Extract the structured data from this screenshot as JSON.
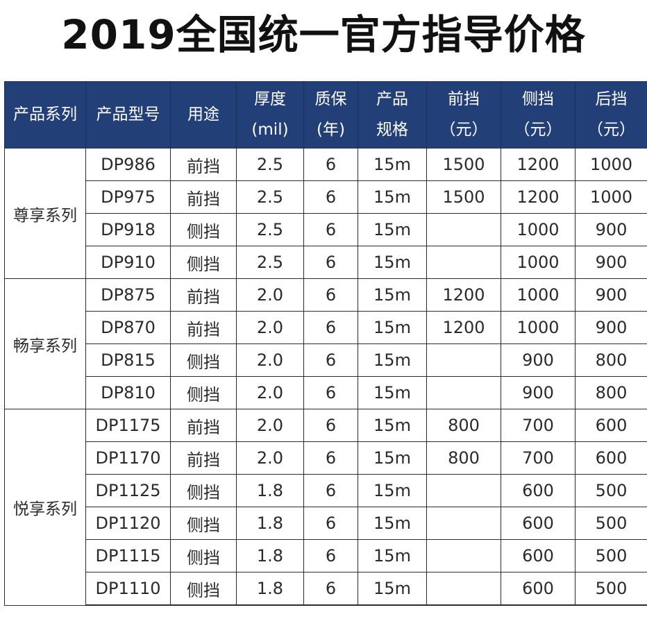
{
  "title": "2019全国统一官方指导价格",
  "headers": [
    [
      "产品系列"
    ],
    [
      "产品型号"
    ],
    [
      "用途"
    ],
    [
      "厚度",
      "(mil)"
    ],
    [
      "质保",
      "(年)"
    ],
    [
      "产品",
      "规格"
    ],
    [
      "前挡",
      "（元）"
    ],
    [
      "侧挡",
      "（元）"
    ],
    [
      "后挡",
      "（元）"
    ]
  ],
  "groups": [
    {
      "series": "尊享系列",
      "rows": [
        {
          "model": "DP986",
          "use": "前挡",
          "thickness": "2.5",
          "warranty": "6",
          "spec": "15m",
          "front": "1500",
          "side": "1200",
          "rear": "1000"
        },
        {
          "model": "DP975",
          "use": "前挡",
          "thickness": "2.5",
          "warranty": "6",
          "spec": "15m",
          "front": "1500",
          "side": "1200",
          "rear": "1000"
        },
        {
          "model": "DP918",
          "use": "侧挡",
          "thickness": "2.5",
          "warranty": "6",
          "spec": "15m",
          "front": "",
          "side": "1000",
          "rear": "900"
        },
        {
          "model": "DP910",
          "use": "侧挡",
          "thickness": "2.5",
          "warranty": "6",
          "spec": "15m",
          "front": "",
          "side": "1000",
          "rear": "900"
        }
      ]
    },
    {
      "series": "畅享系列",
      "rows": [
        {
          "model": "DP875",
          "use": "前挡",
          "thickness": "2.0",
          "warranty": "6",
          "spec": "15m",
          "front": "1200",
          "side": "1000",
          "rear": "900"
        },
        {
          "model": "DP870",
          "use": "前挡",
          "thickness": "2.0",
          "warranty": "6",
          "spec": "15m",
          "front": "1200",
          "side": "1000",
          "rear": "900"
        },
        {
          "model": "DP815",
          "use": "侧挡",
          "thickness": "2.0",
          "warranty": "6",
          "spec": "15m",
          "front": "",
          "side": "900",
          "rear": "800"
        },
        {
          "model": "DP810",
          "use": "侧挡",
          "thickness": "2.0",
          "warranty": "6",
          "spec": "15m",
          "front": "",
          "side": "900",
          "rear": "800"
        }
      ]
    },
    {
      "series": "悦享系列",
      "rows": [
        {
          "model": "DP1175",
          "use": "前挡",
          "thickness": "2.0",
          "warranty": "6",
          "spec": "15m",
          "front": "800",
          "side": "700",
          "rear": "600"
        },
        {
          "model": "DP1170",
          "use": "前挡",
          "thickness": "2.0",
          "warranty": "6",
          "spec": "15m",
          "front": "800",
          "side": "700",
          "rear": "600"
        },
        {
          "model": "DP1125",
          "use": "侧挡",
          "thickness": "1.8",
          "warranty": "6",
          "spec": "15m",
          "front": "",
          "side": "600",
          "rear": "500"
        },
        {
          "model": "DP1120",
          "use": "侧挡",
          "thickness": "1.8",
          "warranty": "6",
          "spec": "15m",
          "front": "",
          "side": "600",
          "rear": "500"
        },
        {
          "model": "DP1115",
          "use": "侧挡",
          "thickness": "1.8",
          "warranty": "6",
          "spec": "15m",
          "front": "",
          "side": "600",
          "rear": "500"
        },
        {
          "model": "DP1110",
          "use": "侧挡",
          "thickness": "1.8",
          "warranty": "6",
          "spec": "15m",
          "front": "",
          "side": "600",
          "rear": "500"
        }
      ]
    }
  ]
}
